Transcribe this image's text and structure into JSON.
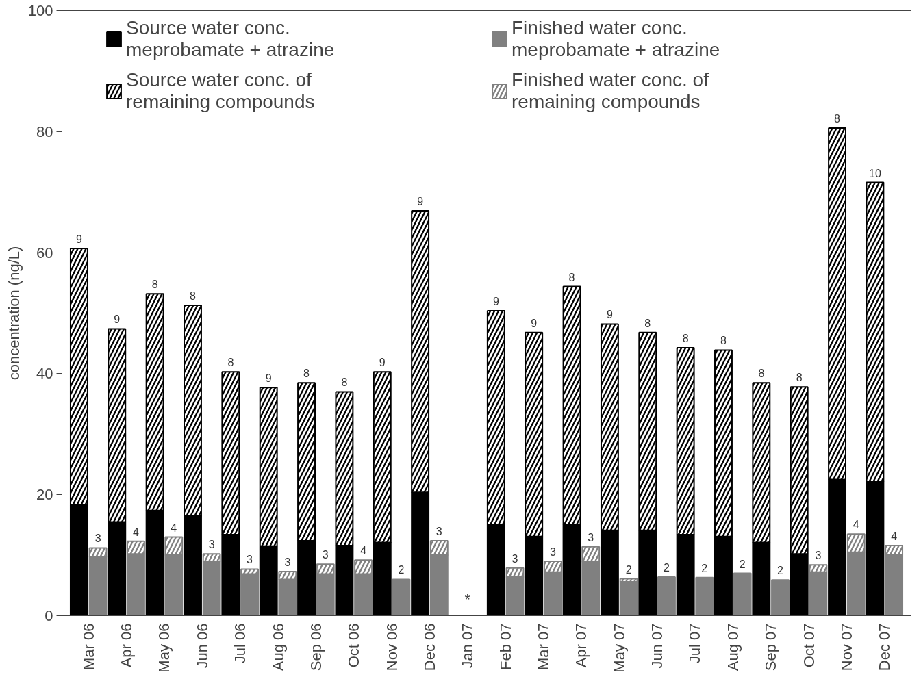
{
  "chart_data": {
    "type": "bar",
    "stacked": true,
    "ylabel": "concentration (ng/L)",
    "categories": [
      "Mar 06",
      null,
      "Apr 06",
      null,
      "May 06",
      null,
      "Jun 06",
      null,
      "Jul 06",
      null,
      "Aug 06",
      null,
      "Sep 06",
      null,
      "Oct 06",
      null,
      "Nov 06",
      null,
      "Dec 06",
      null,
      "Jan 07",
      null,
      "Feb 07",
      null,
      "Mar 07",
      null,
      "Apr 07",
      null,
      "May 07",
      null,
      "Jun 07",
      null,
      "Jul 07",
      null,
      "Aug 07",
      null,
      "Sep 07",
      null,
      "Oct 07",
      null,
      "Nov 07",
      null,
      "Dec 07",
      null
    ],
    "series": [
      {
        "name": "Source water conc.\nmeprobamate + atrazine",
        "color": "#000000",
        "values": [
          18.3,
          null,
          15.5,
          null,
          17.4,
          null,
          16.5,
          null,
          13.4,
          null,
          11.5,
          null,
          12.4,
          null,
          11.6,
          null,
          12.1,
          null,
          20.4,
          null,
          null,
          null,
          15.1,
          null,
          13.1,
          null,
          15.1,
          null,
          14.1,
          null,
          14.1,
          null,
          13.4,
          null,
          13.1,
          null,
          12.1,
          null,
          10.2,
          null,
          22.5,
          null,
          22.2,
          null
        ]
      },
      {
        "name": "Source water conc. of\nremaining compounds",
        "color": "#000000",
        "values": [
          42.4,
          null,
          31.9,
          null,
          35.8,
          null,
          34.8,
          null,
          26.9,
          null,
          26.2,
          null,
          26.1,
          null,
          25.4,
          null,
          28.2,
          null,
          46.5,
          null,
          null,
          null,
          35.3,
          null,
          33.7,
          null,
          39.3,
          null,
          34.1,
          null,
          32.7,
          null,
          30.9,
          null,
          30.8,
          null,
          26.4,
          null,
          27.6,
          null,
          58.1,
          null,
          49.4,
          null
        ]
      },
      {
        "name": "Finished water conc.\nmeprobamate + atrazine",
        "color": "#808080",
        "values": [
          null,
          9.7,
          null,
          10.2,
          null,
          10.0,
          null,
          9.0,
          null,
          6.9,
          null,
          6.0,
          null,
          6.9,
          null,
          6.9,
          null,
          6.0,
          null,
          10.0,
          null,
          null,
          null,
          6.4,
          null,
          7.2,
          null,
          8.9,
          null,
          5.6,
          null,
          6.4,
          null,
          6.3,
          null,
          7.0,
          null,
          5.9,
          null,
          7.2,
          null,
          10.5,
          null,
          10.0
        ]
      },
      {
        "name": "Finished water conc. of\nremaining compounds",
        "color": "#808080",
        "values": [
          null,
          1.5,
          null,
          2.1,
          null,
          3.0,
          null,
          1.2,
          null,
          0.8,
          null,
          1.3,
          null,
          1.6,
          null,
          2.3,
          null,
          null,
          null,
          2.4,
          null,
          null,
          null,
          1.5,
          null,
          1.8,
          null,
          2.5,
          null,
          0.5,
          null,
          null,
          null,
          null,
          null,
          null,
          null,
          null,
          null,
          1.2,
          null,
          3.0,
          null,
          1.6
        ]
      }
    ],
    "annotations": [
      "9",
      "3",
      "9",
      "4",
      "8",
      "4",
      "8",
      "3",
      "8",
      "3",
      "9",
      "3",
      "8",
      "3",
      "8",
      "4",
      "9",
      "2",
      "9",
      "3",
      "9",
      "3",
      "9",
      "3",
      "8",
      "3",
      "9",
      "2",
      "8",
      "2",
      "8",
      "2",
      "8",
      "2",
      "8",
      "2",
      "8",
      "3",
      "8",
      "4",
      "10",
      "4",
      "*"
    ],
    "ylim": [
      0,
      100
    ],
    "yticks": [
      0,
      20,
      40,
      60,
      80,
      100
    ],
    "grid": false,
    "legend": "top"
  }
}
